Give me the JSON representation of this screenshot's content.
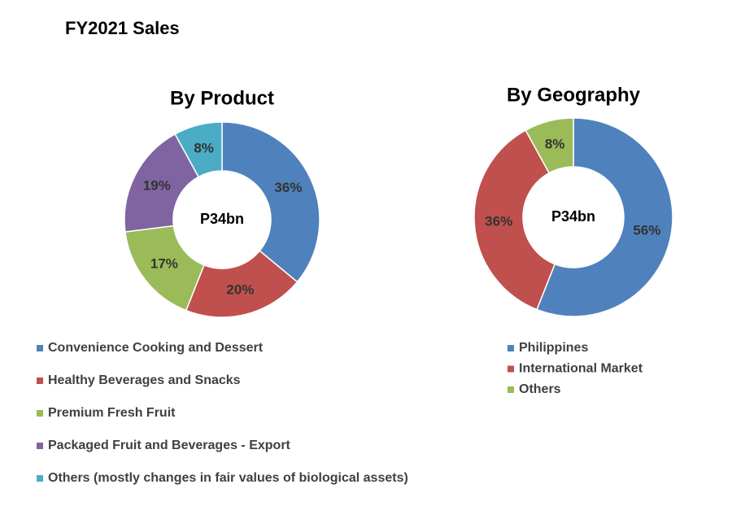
{
  "title": "FY2021 Sales",
  "chart_data": [
    {
      "type": "donut",
      "title": "By Product",
      "center_label": "P34bn",
      "categories": [
        "Convenience Cooking and Dessert",
        "Healthy Beverages and Snacks",
        "Premium Fresh Fruit",
        "Packaged Fruit and Beverages - Export",
        "Others (mostly changes in fair values of biological assets)"
      ],
      "values": [
        36,
        20,
        17,
        19,
        8
      ],
      "value_labels": [
        "36%",
        "20%",
        "17%",
        "19%",
        "8%"
      ],
      "colors": [
        "#4f81bd",
        "#c0504d",
        "#9bbb59",
        "#8064a2",
        "#4bacc6"
      ]
    },
    {
      "type": "donut",
      "title": "By Geography",
      "center_label": "P34bn",
      "categories": [
        "Philippines",
        "International Market",
        "Others"
      ],
      "values": [
        56,
        36,
        8
      ],
      "value_labels": [
        "56%",
        "36%",
        "8%"
      ],
      "colors": [
        "#4f81bd",
        "#c0504d",
        "#9bbb59"
      ]
    }
  ]
}
